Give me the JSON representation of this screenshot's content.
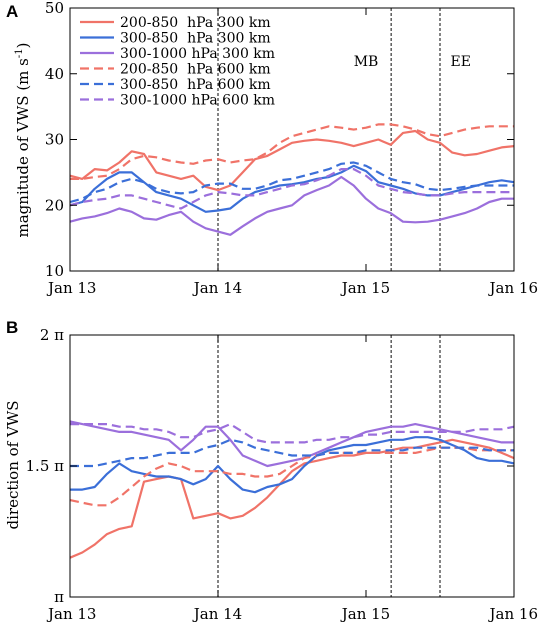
{
  "colors": {
    "c200_850": "#f07368",
    "c300_850": "#3b6fd8",
    "c300_1000": "#9b6fdc"
  },
  "chart_data": [
    {
      "panel": "A",
      "type": "line",
      "ylabel_main": "magnitude of VWS (m s",
      "ylabel_sup": "-1",
      "ylabel_tail": ")",
      "ylim": [
        10,
        50
      ],
      "yticks": [
        10,
        20,
        30,
        40,
        50
      ],
      "ytick_labels": [
        "10",
        "20",
        "30",
        "40",
        "50"
      ],
      "xlim": [
        0,
        3
      ],
      "xticks": [
        0,
        1,
        2,
        3
      ],
      "xtick_labels": [
        "Jan 13",
        "Jan 14",
        "Jan 15",
        "Jan 16"
      ],
      "vlines": [
        1,
        2.17,
        2.5
      ],
      "annotations": [
        {
          "text": "MB",
          "x": 2.0
        },
        {
          "text": "EE",
          "x": 2.64
        }
      ],
      "legend": {
        "placement": "top-left"
      },
      "x": [
        0,
        0.083,
        0.167,
        0.25,
        0.333,
        0.417,
        0.5,
        0.583,
        0.667,
        0.75,
        0.833,
        0.917,
        1.0,
        1.083,
        1.167,
        1.25,
        1.333,
        1.417,
        1.5,
        1.583,
        1.667,
        1.75,
        1.833,
        1.917,
        2.0,
        2.083,
        2.167,
        2.25,
        2.333,
        2.417,
        2.5,
        2.583,
        2.667,
        2.75,
        2.833,
        2.917,
        3.0
      ],
      "series": [
        {
          "name": "200-850  hPa 300 km",
          "color_key": "c200_850",
          "dash": false,
          "values": [
            24.5,
            24.0,
            25.5,
            25.3,
            26.5,
            28.2,
            27.8,
            25.0,
            24.5,
            24.0,
            24.5,
            22.8,
            22.3,
            23.0,
            25.0,
            27.0,
            27.5,
            28.5,
            29.5,
            29.8,
            30.0,
            29.8,
            29.5,
            29.0,
            29.5,
            30.0,
            29.2,
            31.0,
            31.3,
            30.0,
            29.5,
            28.0,
            27.6,
            27.8,
            28.3,
            28.8,
            29.0
          ]
        },
        {
          "name": "300-850  hPa 300 km",
          "color_key": "c300_850",
          "dash": false,
          "values": [
            20.0,
            20.5,
            22.5,
            24.0,
            25.0,
            25.0,
            23.5,
            22.0,
            21.5,
            21.0,
            20.0,
            19.0,
            19.2,
            19.5,
            21.0,
            22.0,
            22.5,
            23.0,
            23.2,
            23.5,
            24.0,
            24.3,
            25.0,
            26.0,
            25.2,
            23.5,
            23.0,
            22.5,
            21.8,
            21.5,
            21.5,
            22.0,
            22.5,
            23.0,
            23.5,
            23.8,
            23.5
          ]
        },
        {
          "name": "300-1000 hPa 300 km",
          "color_key": "c300_1000",
          "dash": false,
          "values": [
            17.5,
            18.0,
            18.3,
            18.8,
            19.5,
            19.0,
            18.0,
            17.8,
            18.5,
            19.0,
            17.5,
            16.5,
            16.0,
            15.5,
            16.8,
            18.0,
            19.0,
            19.5,
            20.0,
            21.5,
            22.3,
            23.0,
            24.3,
            23.0,
            21.0,
            19.5,
            18.8,
            17.5,
            17.4,
            17.5,
            17.8,
            18.3,
            18.8,
            19.5,
            20.5,
            21.0,
            21.0
          ]
        },
        {
          "name": "200-850  hPa 600 km",
          "color_key": "c200_850",
          "dash": true,
          "values": [
            24.0,
            24.0,
            24.3,
            24.5,
            25.5,
            27.0,
            27.5,
            27.3,
            26.8,
            26.5,
            26.3,
            26.8,
            27.0,
            26.5,
            26.8,
            27.0,
            28.0,
            29.5,
            30.5,
            31.0,
            31.5,
            32.0,
            31.8,
            31.5,
            31.8,
            32.3,
            32.3,
            32.0,
            31.5,
            30.8,
            30.5,
            31.0,
            31.5,
            31.8,
            32.0,
            32.0,
            32.0
          ]
        },
        {
          "name": "300-850  hPa 600 km",
          "color_key": "c300_850",
          "dash": true,
          "values": [
            20.5,
            21.0,
            22.0,
            22.5,
            23.5,
            24.0,
            23.5,
            22.5,
            22.0,
            21.8,
            22.0,
            23.0,
            23.3,
            23.3,
            22.5,
            22.5,
            23.0,
            23.8,
            24.0,
            24.5,
            25.0,
            25.5,
            26.3,
            26.5,
            26.0,
            25.0,
            24.0,
            23.5,
            23.2,
            22.5,
            22.3,
            22.5,
            22.8,
            23.0,
            23.0,
            23.0,
            23.0
          ]
        },
        {
          "name": "300-1000 hPa 600 km",
          "color_key": "c300_1000",
          "dash": true,
          "values": [
            20.0,
            20.5,
            20.8,
            21.0,
            21.5,
            21.5,
            21.0,
            20.5,
            20.0,
            19.5,
            20.5,
            21.5,
            22.0,
            21.8,
            21.5,
            21.5,
            22.0,
            22.5,
            23.0,
            23.2,
            23.8,
            24.5,
            25.5,
            25.5,
            24.5,
            23.0,
            22.5,
            22.0,
            21.8,
            21.5,
            21.5,
            21.8,
            22.0,
            22.0,
            22.0,
            22.0,
            22.0
          ]
        }
      ]
    },
    {
      "panel": "B",
      "type": "line",
      "ylabel": "direction of VWS",
      "ylim": [
        1.0,
        2.0
      ],
      "yticks": [
        1.0,
        1.5,
        2.0
      ],
      "ytick_labels": [
        "π",
        "1.5 π",
        "2 π"
      ],
      "xlim": [
        0,
        3
      ],
      "xticks": [
        0,
        1,
        2,
        3
      ],
      "xtick_labels": [
        "Jan 13",
        "Jan 14",
        "Jan 15",
        "Jan 16"
      ],
      "vlines": [
        1,
        2.17,
        2.5
      ],
      "x": [
        0,
        0.083,
        0.167,
        0.25,
        0.333,
        0.417,
        0.5,
        0.583,
        0.667,
        0.75,
        0.833,
        0.917,
        1.0,
        1.083,
        1.167,
        1.25,
        1.333,
        1.417,
        1.5,
        1.583,
        1.667,
        1.75,
        1.833,
        1.917,
        2.0,
        2.083,
        2.167,
        2.25,
        2.333,
        2.417,
        2.5,
        2.583,
        2.667,
        2.75,
        2.833,
        2.917,
        3.0
      ],
      "series": [
        {
          "name": "200-850  hPa 300 km",
          "color_key": "c200_850",
          "dash": false,
          "values": [
            1.15,
            1.17,
            1.2,
            1.24,
            1.26,
            1.27,
            1.44,
            1.45,
            1.46,
            1.45,
            1.3,
            1.31,
            1.32,
            1.3,
            1.31,
            1.34,
            1.38,
            1.43,
            1.48,
            1.51,
            1.52,
            1.53,
            1.54,
            1.54,
            1.55,
            1.55,
            1.56,
            1.57,
            1.57,
            1.58,
            1.59,
            1.6,
            1.59,
            1.58,
            1.57,
            1.55,
            1.53
          ]
        },
        {
          "name": "300-850  hPa 300 km",
          "color_key": "c300_850",
          "dash": false,
          "values": [
            1.41,
            1.41,
            1.42,
            1.47,
            1.51,
            1.48,
            1.47,
            1.46,
            1.46,
            1.45,
            1.43,
            1.45,
            1.5,
            1.45,
            1.41,
            1.4,
            1.42,
            1.43,
            1.45,
            1.5,
            1.54,
            1.56,
            1.57,
            1.58,
            1.58,
            1.59,
            1.6,
            1.6,
            1.61,
            1.61,
            1.6,
            1.58,
            1.56,
            1.53,
            1.52,
            1.52,
            1.51
          ]
        },
        {
          "name": "300-1000 hPa 300 km",
          "color_key": "c300_1000",
          "dash": false,
          "values": [
            1.67,
            1.66,
            1.65,
            1.64,
            1.63,
            1.63,
            1.62,
            1.61,
            1.6,
            1.56,
            1.6,
            1.65,
            1.65,
            1.6,
            1.54,
            1.52,
            1.5,
            1.51,
            1.52,
            1.53,
            1.55,
            1.57,
            1.59,
            1.61,
            1.63,
            1.64,
            1.65,
            1.65,
            1.66,
            1.65,
            1.64,
            1.63,
            1.62,
            1.61,
            1.6,
            1.59,
            1.59
          ]
        },
        {
          "name": "200-850  hPa 600 km",
          "color_key": "c200_850",
          "dash": true,
          "values": [
            1.37,
            1.36,
            1.35,
            1.35,
            1.38,
            1.42,
            1.46,
            1.49,
            1.51,
            1.5,
            1.48,
            1.48,
            1.48,
            1.47,
            1.47,
            1.46,
            1.46,
            1.47,
            1.5,
            1.53,
            1.54,
            1.55,
            1.55,
            1.55,
            1.55,
            1.55,
            1.55,
            1.55,
            1.55,
            1.56,
            1.57,
            1.57,
            1.57,
            1.56,
            1.56,
            1.56,
            1.56
          ]
        },
        {
          "name": "300-850  hPa 600 km",
          "color_key": "c300_850",
          "dash": true,
          "values": [
            1.5,
            1.5,
            1.5,
            1.51,
            1.52,
            1.53,
            1.53,
            1.54,
            1.55,
            1.55,
            1.55,
            1.57,
            1.58,
            1.6,
            1.59,
            1.57,
            1.56,
            1.55,
            1.54,
            1.54,
            1.54,
            1.55,
            1.55,
            1.55,
            1.56,
            1.56,
            1.56,
            1.56,
            1.57,
            1.57,
            1.57,
            1.57,
            1.57,
            1.57,
            1.56,
            1.56,
            1.56
          ]
        },
        {
          "name": "300-1000 hPa 600 km",
          "color_key": "c300_1000",
          "dash": true,
          "values": [
            1.66,
            1.66,
            1.66,
            1.66,
            1.65,
            1.65,
            1.64,
            1.64,
            1.63,
            1.61,
            1.61,
            1.63,
            1.64,
            1.66,
            1.63,
            1.6,
            1.59,
            1.59,
            1.59,
            1.59,
            1.6,
            1.6,
            1.61,
            1.61,
            1.62,
            1.62,
            1.63,
            1.63,
            1.63,
            1.63,
            1.63,
            1.63,
            1.63,
            1.64,
            1.64,
            1.64,
            1.65
          ]
        }
      ]
    }
  ]
}
